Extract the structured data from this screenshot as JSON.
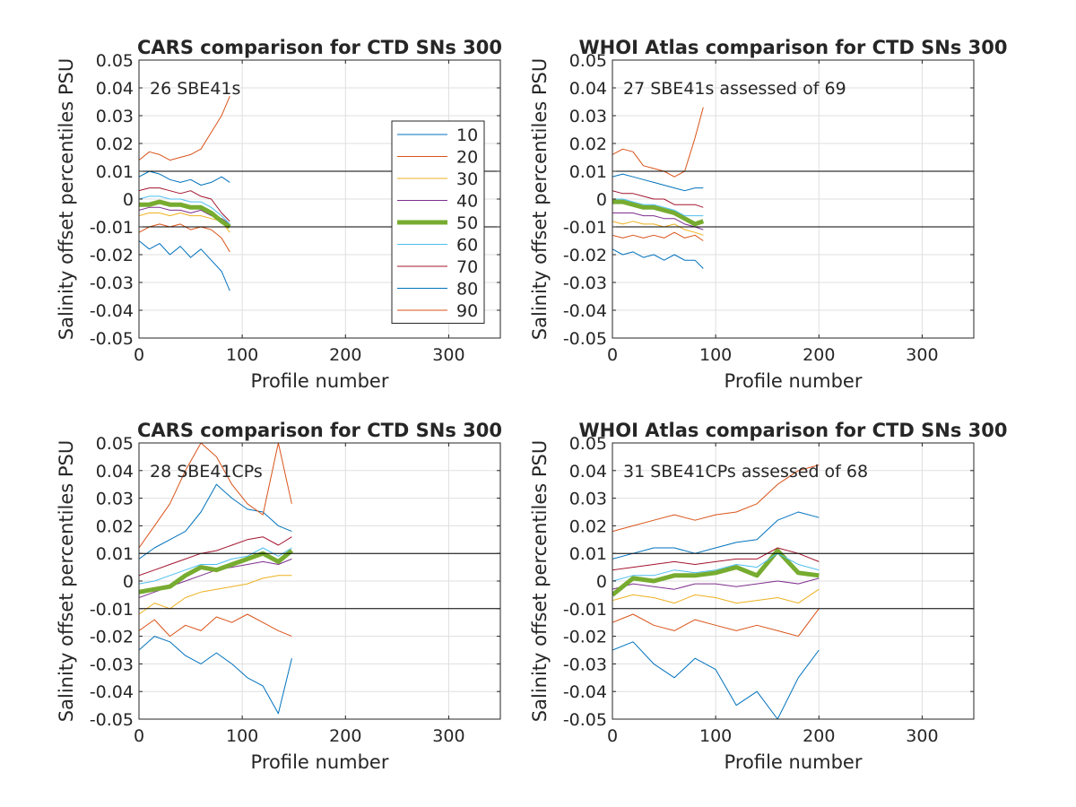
{
  "figure": {
    "background": "#ffffff",
    "line_colors": [
      "#0072bd",
      "#d95319",
      "#edb120",
      "#7e2f8e",
      "#77ac30",
      "#4dbeee",
      "#a2142f",
      "#0072bd",
      "#d95319"
    ],
    "median_color": "#77ac30",
    "reference_line_color": "#000000"
  },
  "chart_data": [
    {
      "type": "line",
      "title": "CARS comparison for CTD SNs 300",
      "annotation": "26 SBE41s",
      "xlabel": "Profile number",
      "ylabel": "Salinity offset percentiles PSU",
      "xlim": [
        0,
        350
      ],
      "ylim": [
        -0.05,
        0.05
      ],
      "xticks": [
        0,
        100,
        200,
        300
      ],
      "yticks": [
        -0.05,
        -0.04,
        -0.03,
        -0.02,
        -0.01,
        0,
        0.01,
        0.02,
        0.03,
        0.04,
        0.05
      ],
      "grid": true,
      "reference_lines": [
        0.01,
        -0.01
      ],
      "legend": {
        "placement": "upper-right-inside",
        "entries": [
          "10",
          "20",
          "30",
          "40",
          "50",
          "60",
          "70",
          "80",
          "90"
        ]
      },
      "x": [
        0,
        10,
        20,
        30,
        40,
        50,
        60,
        70,
        80,
        88
      ],
      "series": [
        {
          "name": "10",
          "values": [
            -0.015,
            -0.018,
            -0.016,
            -0.02,
            -0.017,
            -0.021,
            -0.018,
            -0.022,
            -0.026,
            -0.033
          ]
        },
        {
          "name": "20",
          "values": [
            -0.012,
            -0.01,
            -0.009,
            -0.01,
            -0.009,
            -0.011,
            -0.01,
            -0.011,
            -0.014,
            -0.019
          ]
        },
        {
          "name": "30",
          "values": [
            -0.006,
            -0.005,
            -0.005,
            -0.006,
            -0.005,
            -0.006,
            -0.006,
            -0.007,
            -0.008,
            -0.012
          ]
        },
        {
          "name": "40",
          "values": [
            -0.004,
            -0.003,
            -0.003,
            -0.004,
            -0.004,
            -0.005,
            -0.004,
            -0.006,
            -0.007,
            -0.009
          ]
        },
        {
          "name": "50",
          "values": [
            -0.002,
            -0.002,
            -0.001,
            -0.002,
            -0.002,
            -0.003,
            -0.003,
            -0.005,
            -0.008,
            -0.01
          ]
        },
        {
          "name": "60",
          "values": [
            0.0,
            0.001,
            0.001,
            0.0,
            0.0,
            -0.001,
            -0.001,
            -0.003,
            -0.006,
            -0.009
          ]
        },
        {
          "name": "70",
          "values": [
            0.003,
            0.004,
            0.004,
            0.003,
            0.002,
            0.003,
            0.001,
            0.0,
            -0.005,
            -0.008
          ]
        },
        {
          "name": "80",
          "values": [
            0.008,
            0.01,
            0.009,
            0.007,
            0.006,
            0.007,
            0.005,
            0.006,
            0.008,
            0.006
          ]
        },
        {
          "name": "90",
          "values": [
            0.014,
            0.017,
            0.016,
            0.014,
            0.015,
            0.016,
            0.018,
            0.024,
            0.03,
            0.037
          ]
        }
      ]
    },
    {
      "type": "line",
      "title": "WHOI Atlas comparison for CTD SNs 300",
      "annotation": "27 SBE41s assessed of 69",
      "xlabel": "Profile number",
      "ylabel": "Salinity offset percentiles PSU",
      "xlim": [
        0,
        350
      ],
      "ylim": [
        -0.05,
        0.05
      ],
      "xticks": [
        0,
        100,
        200,
        300
      ],
      "yticks": [
        -0.05,
        -0.04,
        -0.03,
        -0.02,
        -0.01,
        0,
        0.01,
        0.02,
        0.03,
        0.04,
        0.05
      ],
      "grid": true,
      "reference_lines": [
        0.01,
        -0.01
      ],
      "x": [
        0,
        10,
        20,
        30,
        40,
        50,
        60,
        70,
        80,
        88
      ],
      "series": [
        {
          "values": [
            -0.018,
            -0.02,
            -0.019,
            -0.021,
            -0.02,
            -0.022,
            -0.02,
            -0.022,
            -0.022,
            -0.025
          ]
        },
        {
          "values": [
            -0.013,
            -0.014,
            -0.013,
            -0.014,
            -0.013,
            -0.014,
            -0.012,
            -0.014,
            -0.013,
            -0.015
          ]
        },
        {
          "values": [
            -0.008,
            -0.009,
            -0.008,
            -0.009,
            -0.009,
            -0.01,
            -0.009,
            -0.011,
            -0.012,
            -0.013
          ]
        },
        {
          "values": [
            -0.005,
            -0.005,
            -0.005,
            -0.006,
            -0.006,
            -0.007,
            -0.007,
            -0.009,
            -0.01,
            -0.011
          ]
        },
        {
          "values": [
            -0.001,
            -0.001,
            -0.002,
            -0.003,
            -0.003,
            -0.004,
            -0.005,
            -0.007,
            -0.009,
            -0.008
          ]
        },
        {
          "values": [
            0.0,
            0.0,
            -0.001,
            -0.002,
            -0.002,
            -0.003,
            -0.004,
            -0.006,
            -0.006,
            -0.006
          ]
        },
        {
          "values": [
            0.003,
            0.002,
            0.002,
            0.001,
            0.0,
            0.0,
            -0.002,
            -0.002,
            -0.002,
            -0.003
          ]
        },
        {
          "values": [
            0.008,
            0.009,
            0.008,
            0.007,
            0.006,
            0.005,
            0.004,
            0.003,
            0.004,
            0.004
          ]
        },
        {
          "values": [
            0.016,
            0.018,
            0.017,
            0.012,
            0.011,
            0.01,
            0.008,
            0.01,
            0.022,
            0.033
          ]
        }
      ]
    },
    {
      "type": "line",
      "title": "CARS comparison for CTD SNs 300",
      "annotation": "28 SBE41CPs",
      "xlabel": "Profile number",
      "ylabel": "Salinity offset percentiles PSU",
      "xlim": [
        0,
        350
      ],
      "ylim": [
        -0.05,
        0.05
      ],
      "xticks": [
        0,
        100,
        200,
        300
      ],
      "yticks": [
        -0.05,
        -0.04,
        -0.03,
        -0.02,
        -0.01,
        0,
        0.01,
        0.02,
        0.03,
        0.04,
        0.05
      ],
      "grid": true,
      "reference_lines": [
        0.01,
        -0.01
      ],
      "x": [
        0,
        15,
        30,
        45,
        60,
        75,
        90,
        105,
        120,
        135,
        148
      ],
      "series": [
        {
          "values": [
            -0.025,
            -0.02,
            -0.022,
            -0.027,
            -0.03,
            -0.026,
            -0.03,
            -0.035,
            -0.038,
            -0.048,
            -0.028
          ]
        },
        {
          "values": [
            -0.018,
            -0.014,
            -0.02,
            -0.016,
            -0.018,
            -0.013,
            -0.015,
            -0.012,
            -0.015,
            -0.018,
            -0.02
          ]
        },
        {
          "values": [
            -0.012,
            -0.008,
            -0.01,
            -0.006,
            -0.004,
            -0.003,
            -0.002,
            -0.001,
            0.001,
            0.002,
            0.002
          ]
        },
        {
          "values": [
            -0.006,
            -0.004,
            -0.002,
            0.0,
            0.002,
            0.004,
            0.005,
            0.006,
            0.007,
            0.006,
            0.008
          ]
        },
        {
          "values": [
            -0.004,
            -0.003,
            -0.002,
            0.002,
            0.005,
            0.004,
            0.006,
            0.008,
            0.01,
            0.007,
            0.011
          ]
        },
        {
          "values": [
            -0.001,
            0.0,
            0.002,
            0.004,
            0.006,
            0.006,
            0.008,
            0.009,
            0.012,
            0.009,
            0.012
          ]
        },
        {
          "values": [
            0.002,
            0.004,
            0.006,
            0.008,
            0.01,
            0.011,
            0.013,
            0.015,
            0.016,
            0.013,
            0.016
          ]
        },
        {
          "values": [
            0.008,
            0.012,
            0.015,
            0.018,
            0.025,
            0.035,
            0.03,
            0.026,
            0.025,
            0.02,
            0.018
          ]
        },
        {
          "values": [
            0.012,
            0.02,
            0.028,
            0.04,
            0.05,
            0.045,
            0.035,
            0.028,
            0.024,
            0.05,
            0.028
          ]
        }
      ]
    },
    {
      "type": "line",
      "title": "WHOI Atlas comparison for CTD SNs 300",
      "annotation": "31 SBE41CPs assessed of 68",
      "xlabel": "Profile number",
      "ylabel": "Salinity offset percentiles PSU",
      "xlim": [
        0,
        350
      ],
      "ylim": [
        -0.05,
        0.05
      ],
      "xticks": [
        0,
        100,
        200,
        300
      ],
      "yticks": [
        -0.05,
        -0.04,
        -0.03,
        -0.02,
        -0.01,
        0,
        0.01,
        0.02,
        0.03,
        0.04,
        0.05
      ],
      "grid": true,
      "reference_lines": [
        0.01,
        -0.01
      ],
      "x": [
        0,
        20,
        40,
        60,
        80,
        100,
        120,
        140,
        160,
        180,
        200
      ],
      "series": [
        {
          "values": [
            -0.025,
            -0.022,
            -0.03,
            -0.035,
            -0.028,
            -0.032,
            -0.045,
            -0.04,
            -0.05,
            -0.035,
            -0.025
          ]
        },
        {
          "values": [
            -0.015,
            -0.012,
            -0.016,
            -0.018,
            -0.014,
            -0.016,
            -0.018,
            -0.016,
            -0.018,
            -0.02,
            -0.01
          ]
        },
        {
          "values": [
            -0.007,
            -0.005,
            -0.006,
            -0.008,
            -0.005,
            -0.006,
            -0.008,
            -0.007,
            -0.006,
            -0.008,
            -0.003
          ]
        },
        {
          "values": [
            -0.003,
            -0.001,
            -0.002,
            -0.003,
            -0.001,
            -0.001,
            -0.002,
            -0.001,
            0.0,
            -0.001,
            0.001
          ]
        },
        {
          "values": [
            -0.005,
            0.001,
            0.0,
            0.002,
            0.002,
            0.003,
            0.005,
            0.002,
            0.011,
            0.003,
            0.002
          ]
        },
        {
          "values": [
            0.0,
            0.002,
            0.002,
            0.004,
            0.003,
            0.004,
            0.006,
            0.005,
            0.01,
            0.006,
            0.004
          ]
        },
        {
          "values": [
            0.004,
            0.005,
            0.006,
            0.007,
            0.006,
            0.007,
            0.008,
            0.008,
            0.012,
            0.01,
            0.007
          ]
        },
        {
          "values": [
            0.008,
            0.01,
            0.012,
            0.012,
            0.01,
            0.012,
            0.014,
            0.015,
            0.022,
            0.025,
            0.023
          ]
        },
        {
          "values": [
            0.018,
            0.02,
            0.022,
            0.024,
            0.022,
            0.024,
            0.025,
            0.028,
            0.035,
            0.04,
            0.042
          ]
        }
      ]
    }
  ]
}
